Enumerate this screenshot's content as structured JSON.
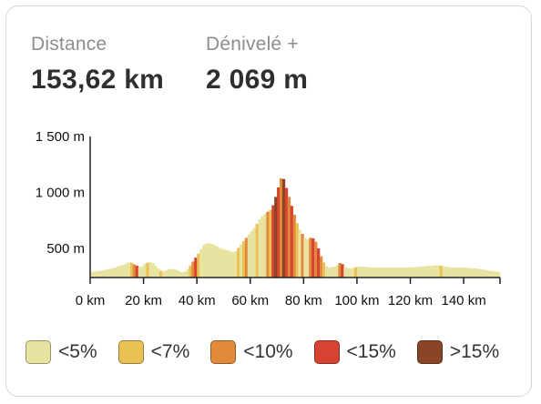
{
  "stats": {
    "distance": {
      "label": "Distance",
      "value": "153,62 km"
    },
    "elevation": {
      "label": "Dénivelé +",
      "value": "2 069 m"
    }
  },
  "legend": [
    {
      "label": "<5%",
      "color": "#e8e3a0"
    },
    {
      "label": "<7%",
      "color": "#e9c155"
    },
    {
      "label": "<10%",
      "color": "#e28a3c"
    },
    {
      "label": "<15%",
      "color": "#d64332"
    },
    {
      "label": ">15%",
      "color": "#8a4526"
    }
  ],
  "chart_data": {
    "type": "area",
    "xlabel": "",
    "ylabel": "",
    "x_ticks": [
      "0 km",
      "20 km",
      "40 km",
      "60 km",
      "80 km",
      "100 km",
      "120 km",
      "140 km"
    ],
    "y_ticks": [
      "500 m",
      "1 000 m",
      "1 500 m"
    ],
    "x_tick_values": [
      0,
      20,
      40,
      60,
      80,
      100,
      120,
      140
    ],
    "y_tick_values": [
      500,
      1000,
      1500
    ],
    "xlim": [
      0,
      153.62
    ],
    "ylim": [
      240,
      1500
    ],
    "profile": [
      [
        0,
        290
      ],
      [
        4,
        300
      ],
      [
        8,
        320
      ],
      [
        12,
        350
      ],
      [
        15,
        380
      ],
      [
        17,
        350
      ],
      [
        19,
        330
      ],
      [
        21,
        370
      ],
      [
        23,
        380
      ],
      [
        25,
        330
      ],
      [
        27,
        290
      ],
      [
        29,
        310
      ],
      [
        31,
        320
      ],
      [
        33,
        300
      ],
      [
        35,
        280
      ],
      [
        37,
        330
      ],
      [
        39,
        400
      ],
      [
        41,
        470
      ],
      [
        42,
        520
      ],
      [
        44,
        550
      ],
      [
        46,
        540
      ],
      [
        48,
        510
      ],
      [
        50,
        490
      ],
      [
        52,
        480
      ],
      [
        54,
        460
      ],
      [
        56,
        520
      ],
      [
        58,
        580
      ],
      [
        60,
        640
      ],
      [
        62,
        700
      ],
      [
        64,
        780
      ],
      [
        66,
        820
      ],
      [
        68,
        850
      ],
      [
        69,
        920
      ],
      [
        70,
        1000
      ],
      [
        71,
        1090
      ],
      [
        72,
        1160
      ],
      [
        73,
        1080
      ],
      [
        74,
        1000
      ],
      [
        75,
        920
      ],
      [
        76,
        840
      ],
      [
        77,
        760
      ],
      [
        78,
        690
      ],
      [
        79,
        640
      ],
      [
        80,
        620
      ],
      [
        81,
        570
      ],
      [
        82,
        590
      ],
      [
        83,
        600
      ],
      [
        84,
        580
      ],
      [
        85,
        540
      ],
      [
        86,
        460
      ],
      [
        87,
        400
      ],
      [
        88,
        350
      ],
      [
        89,
        330
      ],
      [
        90,
        330
      ],
      [
        92,
        340
      ],
      [
        94,
        380
      ],
      [
        95,
        340
      ],
      [
        97,
        320
      ],
      [
        99,
        330
      ],
      [
        101,
        340
      ],
      [
        105,
        330
      ],
      [
        110,
        330
      ],
      [
        115,
        330
      ],
      [
        120,
        330
      ],
      [
        125,
        340
      ],
      [
        130,
        350
      ],
      [
        135,
        330
      ],
      [
        140,
        330
      ],
      [
        145,
        320
      ],
      [
        150,
        300
      ],
      [
        153.62,
        290
      ]
    ],
    "gradient_bands": [
      [
        0,
        "<5%"
      ],
      [
        15,
        "<7%"
      ],
      [
        16,
        "<10%"
      ],
      [
        17,
        "<15%"
      ],
      [
        18,
        "<5%"
      ],
      [
        21,
        "<7%"
      ],
      [
        22,
        "<5%"
      ],
      [
        26,
        "<7%"
      ],
      [
        27,
        "<5%"
      ],
      [
        37,
        "<7%"
      ],
      [
        38,
        "<10%"
      ],
      [
        39,
        "<15%"
      ],
      [
        40,
        "<7%"
      ],
      [
        41,
        "<5%"
      ],
      [
        55,
        "<7%"
      ],
      [
        56,
        "<5%"
      ],
      [
        57,
        "<7%"
      ],
      [
        58,
        "<10%"
      ],
      [
        59,
        "<5%"
      ],
      [
        62,
        "<7%"
      ],
      [
        63,
        "<5%"
      ],
      [
        66,
        "<10%"
      ],
      [
        67,
        "<7%"
      ],
      [
        68,
        "<15%"
      ],
      [
        69,
        ">15%"
      ],
      [
        70,
        "<15%"
      ],
      [
        71,
        "<10%"
      ],
      [
        72,
        ">15%"
      ],
      [
        73,
        "<15%"
      ],
      [
        74,
        "<10%"
      ],
      [
        75,
        "<15%"
      ],
      [
        76,
        "<10%"
      ],
      [
        77,
        "<7%"
      ],
      [
        78,
        "<5%"
      ],
      [
        79,
        "<10%"
      ],
      [
        80,
        "<5%"
      ],
      [
        82,
        "<10%"
      ],
      [
        83,
        "<15%"
      ],
      [
        84,
        "<10%"
      ],
      [
        85,
        "<15%"
      ],
      [
        86,
        "<10%"
      ],
      [
        87,
        "<7%"
      ],
      [
        88,
        "<5%"
      ],
      [
        93,
        "<10%"
      ],
      [
        94,
        "<15%"
      ],
      [
        95,
        "<5%"
      ],
      [
        99,
        "<7%"
      ],
      [
        100,
        "<5%"
      ],
      [
        131,
        "<7%"
      ],
      [
        132,
        "<5%"
      ],
      [
        153.62,
        "<5%"
      ]
    ]
  }
}
